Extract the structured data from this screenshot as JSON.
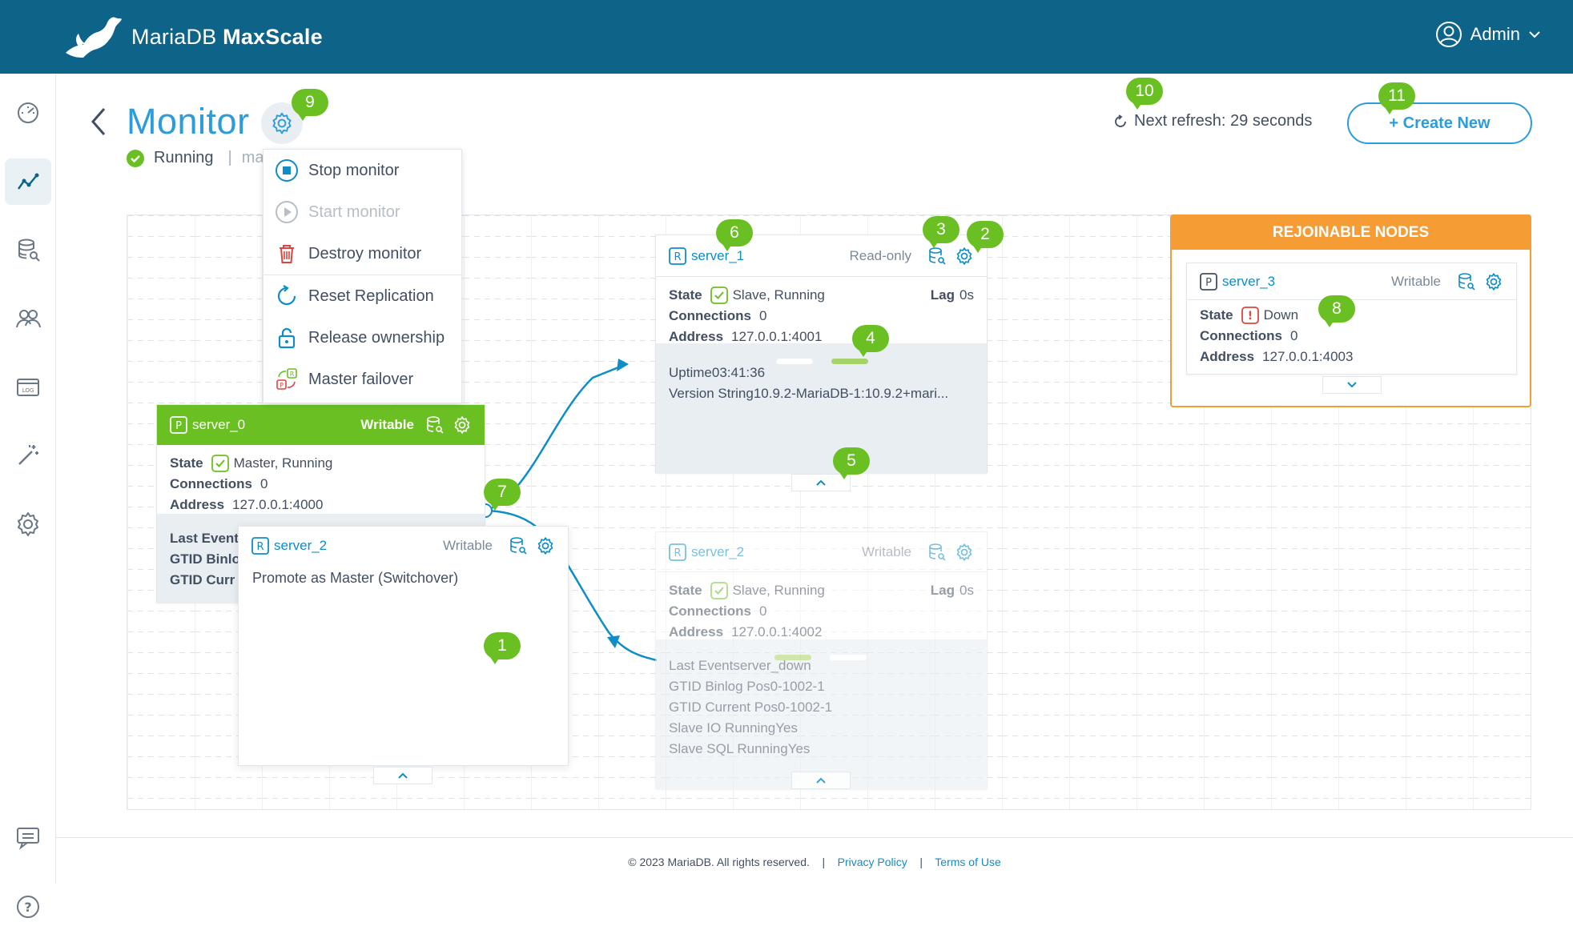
{
  "header": {
    "brand": "MariaDB",
    "product": "MaxScale",
    "user": "Admin"
  },
  "sidebar": {
    "items": [
      {
        "name": "dashboard-icon"
      },
      {
        "name": "visualization-icon",
        "active": true
      },
      {
        "name": "query-editor-icon"
      },
      {
        "name": "users-icon"
      },
      {
        "name": "logs-icon"
      },
      {
        "name": "config-wizard-icon"
      },
      {
        "name": "settings-icon"
      },
      {
        "name": "feedback-icon"
      },
      {
        "name": "help-icon"
      }
    ]
  },
  "page": {
    "title": "Monitor",
    "status": "Running",
    "module_hint": "mar",
    "refresh_text": "Next refresh: 29 seconds",
    "create_label": "+ Create New"
  },
  "menu": {
    "items": [
      {
        "label": "Stop monitor",
        "disabled": false
      },
      {
        "label": "Start monitor",
        "disabled": true
      },
      {
        "label": "Destroy monitor",
        "disabled": false
      },
      {
        "label": "Reset Replication",
        "disabled": false
      },
      {
        "label": "Release ownership",
        "disabled": false
      },
      {
        "label": "Master failover",
        "disabled": false
      }
    ]
  },
  "labels": {
    "state": "State",
    "connections": "Connections",
    "address": "Address",
    "lag": "Lag",
    "uptime": "Uptime",
    "version": "Version String",
    "last_event": "Last Event",
    "gtid_binlog": "GTID Binlog Pos",
    "gtid_current": "GTID Current Pos",
    "slave_io": "Slave IO Running",
    "slave_sql": "Slave SQL Running"
  },
  "nodes": {
    "server_0": {
      "name": "server_0",
      "role": "Writable",
      "state": "Master, Running",
      "connections": "0",
      "address": "127.0.0.1:4000",
      "last_event_label": "Last Event",
      "gtid_binlog_label": "GTID Binlo",
      "gtid_current_label": "GTID Curr"
    },
    "server_1": {
      "name": "server_1",
      "role": "Read-only",
      "state": "Slave, Running",
      "lag": "0s",
      "connections": "0",
      "address": "127.0.0.1:4001",
      "uptime": "03:41:36",
      "version": "10.9.2-MariaDB-1:10.9.2+mari..."
    },
    "server_2": {
      "name": "server_2",
      "role": "Writable",
      "state": "Slave, Running",
      "lag": "0s",
      "connections": "0",
      "address": "127.0.0.1:4002",
      "last_event": "server_down",
      "gtid_binlog": "0-1002-1",
      "gtid_current": "0-1002-1",
      "slave_io": "Yes",
      "slave_sql": "Yes"
    },
    "server_2_drag": {
      "name": "server_2",
      "role": "Writable",
      "action": "Promote as Master (Switchover)"
    },
    "server_3": {
      "name": "server_3",
      "role": "Writable",
      "state": "Down",
      "connections": "0",
      "address": "127.0.0.1:4003"
    }
  },
  "rejoinable": {
    "title": "REJOINABLE NODES"
  },
  "badges": [
    "1",
    "2",
    "3",
    "4",
    "5",
    "6",
    "7",
    "8",
    "9",
    "10",
    "11"
  ],
  "footer": {
    "copyright": "© 2023 MariaDB. All rights reserved.",
    "sep": "|",
    "privacy": "Privacy Policy",
    "terms": "Terms of Use"
  },
  "colors": {
    "header": "#0e6488",
    "accent": "#2d9cdb",
    "master": "#6ac022",
    "rejoinable": "#f59d34",
    "badge": "#6ac022",
    "down": "#e0443e"
  }
}
